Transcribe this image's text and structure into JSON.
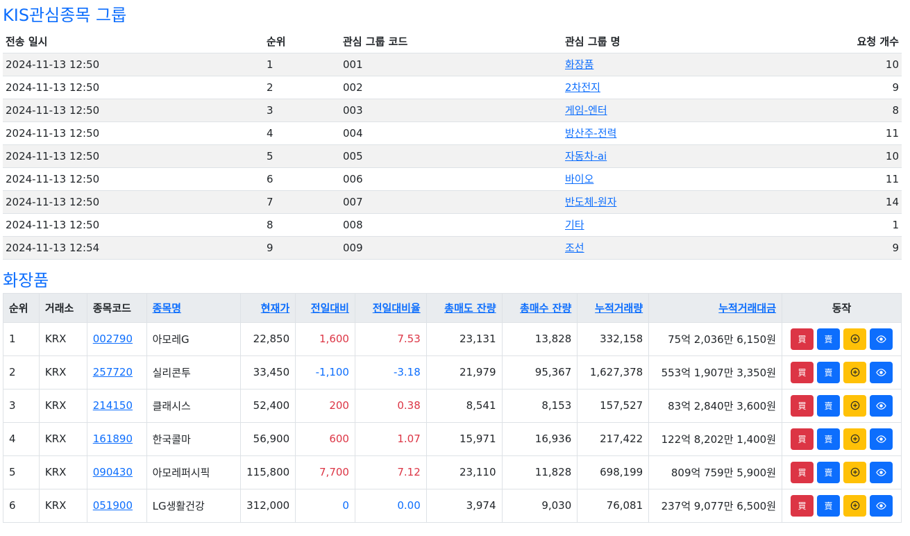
{
  "group_section": {
    "title": "KIS관심종목 그룹",
    "headers": [
      "전송 일시",
      "순위",
      "관심 그룹 코드",
      "관심 그룹 명",
      "요청 개수"
    ],
    "rows": [
      {
        "sent": "2024-11-13 12:50",
        "rank": "1",
        "code": "001",
        "name": "화장품",
        "count": "10"
      },
      {
        "sent": "2024-11-13 12:50",
        "rank": "2",
        "code": "002",
        "name": "2차전지",
        "count": "9"
      },
      {
        "sent": "2024-11-13 12:50",
        "rank": "3",
        "code": "003",
        "name": "게임-엔터",
        "count": "8"
      },
      {
        "sent": "2024-11-13 12:50",
        "rank": "4",
        "code": "004",
        "name": "방산주-전력",
        "count": "11"
      },
      {
        "sent": "2024-11-13 12:50",
        "rank": "5",
        "code": "005",
        "name": "자동차-ai",
        "count": "10"
      },
      {
        "sent": "2024-11-13 12:50",
        "rank": "6",
        "code": "006",
        "name": "바이오",
        "count": "11"
      },
      {
        "sent": "2024-11-13 12:50",
        "rank": "7",
        "code": "007",
        "name": "반도체-원자",
        "count": "14"
      },
      {
        "sent": "2024-11-13 12:50",
        "rank": "8",
        "code": "008",
        "name": "기타",
        "count": "1"
      },
      {
        "sent": "2024-11-13 12:54",
        "rank": "9",
        "code": "009",
        "name": "조선",
        "count": "9"
      }
    ]
  },
  "stock_section": {
    "title": "화장품",
    "headers": {
      "rank": "순위",
      "exchange": "거래소",
      "code": "종목코드",
      "name": "종목명",
      "price": "현재가",
      "change": "전일대비",
      "change_rate": "전일대비율",
      "ask_total": "총매도 잔량",
      "bid_total": "총매수 잔량",
      "volume": "누적거래량",
      "amount": "누적거래대금",
      "action": "동작"
    },
    "buttons": {
      "buy": "買",
      "sell": "賣"
    },
    "rows": [
      {
        "rank": "1",
        "exchange": "KRX",
        "code": "002790",
        "name": "아모레G",
        "price": "22,850",
        "change": "1,600",
        "change_rate": "7.53",
        "dir": "up",
        "ask": "23,131",
        "bid": "13,828",
        "volume": "332,158",
        "amount": "75억 2,036만 6,150원"
      },
      {
        "rank": "2",
        "exchange": "KRX",
        "code": "257720",
        "name": "실리콘투",
        "price": "33,450",
        "change": "-1,100",
        "change_rate": "-3.18",
        "dir": "down",
        "ask": "21,979",
        "bid": "95,367",
        "volume": "1,627,378",
        "amount": "553억 1,907만 3,350원"
      },
      {
        "rank": "3",
        "exchange": "KRX",
        "code": "214150",
        "name": "클래시스",
        "price": "52,400",
        "change": "200",
        "change_rate": "0.38",
        "dir": "up",
        "ask": "8,541",
        "bid": "8,153",
        "volume": "157,527",
        "amount": "83억 2,840만 3,600원"
      },
      {
        "rank": "4",
        "exchange": "KRX",
        "code": "161890",
        "name": "한국콜마",
        "price": "56,900",
        "change": "600",
        "change_rate": "1.07",
        "dir": "up",
        "ask": "15,971",
        "bid": "16,936",
        "volume": "217,422",
        "amount": "122억 8,202만 1,400원"
      },
      {
        "rank": "5",
        "exchange": "KRX",
        "code": "090430",
        "name": "아모레퍼시픽",
        "price": "115,800",
        "change": "7,700",
        "change_rate": "7.12",
        "dir": "up",
        "ask": "23,110",
        "bid": "11,828",
        "volume": "698,199",
        "amount": "809억 759만 5,900원"
      },
      {
        "rank": "6",
        "exchange": "KRX",
        "code": "051900",
        "name": "LG생활건강",
        "price": "312,000",
        "change": "0",
        "change_rate": "0.00",
        "dir": "flat",
        "ask": "3,974",
        "bid": "9,030",
        "volume": "76,081",
        "amount": "237억 9,077만 6,500원"
      }
    ]
  },
  "colors": {
    "link": "#0d6efd",
    "up": "#dc3545",
    "down": "#0d6efd",
    "add_button": "#ffc107",
    "header_bg": "#e9ecef",
    "stripe": "#f2f2f2"
  },
  "icons": {
    "add": "plus-circle-icon",
    "view": "eye-icon"
  }
}
